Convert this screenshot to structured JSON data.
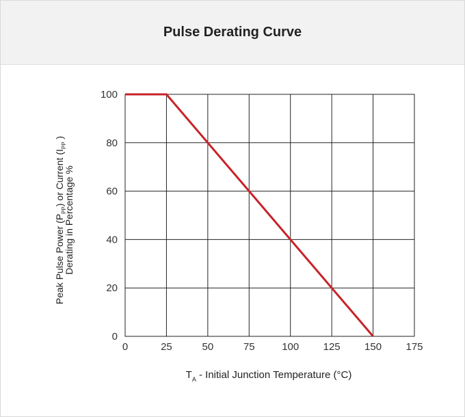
{
  "card": {
    "title": "Pulse Derating Curve"
  },
  "chart_data": {
    "type": "line",
    "title": "Pulse Derating Curve",
    "xlabel_parts": {
      "main": "T",
      "sub": "A",
      "rest": " - Initial Junction Temperature (°C)"
    },
    "ylabel_line1_parts": {
      "a": "Peak Pulse Power (P",
      "sub1": "PP",
      "b": ") or Current (I",
      "sub2": "PP",
      "c": " )"
    },
    "ylabel_line2": "Derating in Percentage %",
    "xlim": [
      0,
      175
    ],
    "ylim": [
      0,
      100
    ],
    "xticks": [
      0,
      25,
      50,
      75,
      100,
      125,
      150,
      175
    ],
    "yticks": [
      0,
      20,
      40,
      60,
      80,
      100
    ],
    "grid": true,
    "series": [
      {
        "color": "#c8222a",
        "x": [
          0,
          25,
          150
        ],
        "y": [
          100,
          100,
          0
        ]
      }
    ]
  }
}
